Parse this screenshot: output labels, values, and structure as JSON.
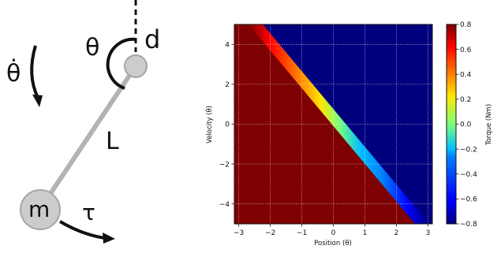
{
  "diagram": {
    "symbols": {
      "theta": "θ",
      "theta_dot": "θ̇",
      "d": "d",
      "length": "L",
      "mass": "m",
      "torque": "τ"
    },
    "colors": {
      "rod": "#b3b3b3",
      "bob_fill": "#cccccc",
      "bob_stroke": "#a6a6a6",
      "ink": "#111111"
    }
  },
  "chart_data": {
    "type": "heatmap",
    "x": {
      "label": "Position (θ)",
      "range": [
        -3.14159,
        3.14159
      ],
      "ticks": [
        -3,
        -2,
        -1,
        0,
        1,
        2,
        3
      ]
    },
    "y": {
      "label": "Velocity (θ̇)",
      "range": [
        -5,
        5
      ],
      "ticks": [
        -4,
        -2,
        0,
        2,
        4
      ]
    },
    "z": {
      "label": "Torque (Nm)",
      "range": [
        -0.8,
        0.8
      ],
      "colormap": "jet"
    },
    "colorbar_ticks": [
      "0.8",
      "0.6",
      "0.4",
      "0.2",
      "0.0",
      "−0.2",
      "−0.4",
      "−0.6",
      "−0.8"
    ],
    "switching_line": {
      "description": "torque +0.8 below line, -0.8 above",
      "theta_at_vel_0": 0.0,
      "slope_dtheta_dvel": -0.565
    },
    "grid": true
  }
}
